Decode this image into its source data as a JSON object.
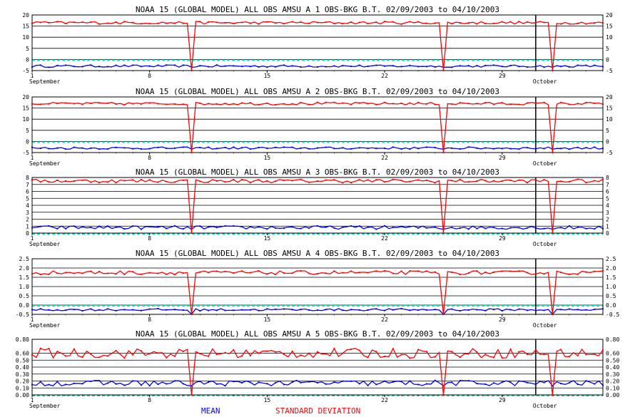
{
  "legend": {
    "mean": "MEAN",
    "std": "STANDARD DEVIATION"
  },
  "colors": {
    "mean": "#0000ff",
    "std": "#ff0000",
    "zero": "#00e5c8",
    "grid": "#000000"
  },
  "chart_data": [
    {
      "type": "line",
      "title": "NOAA 15 (GLOBAL MODEL) ALL OBS AMSU A  1   OBS-BKG B.T.  02/09/2003 to 04/10/2003",
      "ylim": [
        -5,
        20
      ],
      "yticks": [
        "20",
        "15",
        "10",
        "5",
        "0",
        "-5"
      ],
      "ytick_values": [
        20,
        15,
        10,
        5,
        0,
        -5
      ],
      "xticks": [
        "1",
        "8",
        "15",
        "22",
        "29"
      ],
      "xtick_values": [
        1,
        8,
        15,
        22,
        29
      ],
      "months": [
        "September",
        "October"
      ],
      "month_values": [
        1,
        31
      ],
      "grid": true,
      "legend_position": "bottom-center",
      "series": [
        {
          "name": "MEAN",
          "base": -3.0,
          "noise": 0.5,
          "dip": 0.0
        },
        {
          "name": "STANDARD DEVIATION",
          "base": 16.5,
          "noise": 0.6,
          "dip": 0.0
        }
      ],
      "dips": [
        10.5,
        25.5,
        32.0
      ]
    },
    {
      "type": "line",
      "title": "NOAA 15 (GLOBAL MODEL) ALL OBS AMSU A  2   OBS-BKG B.T.  02/09/2003 to 04/10/2003",
      "ylim": [
        -5,
        20
      ],
      "yticks": [
        "20",
        "15",
        "10",
        "5",
        "0",
        "-5"
      ],
      "ytick_values": [
        20,
        15,
        10,
        5,
        0,
        -5
      ],
      "xticks": [
        "1",
        "8",
        "15",
        "22",
        "29"
      ],
      "xtick_values": [
        1,
        8,
        15,
        22,
        29
      ],
      "months": [
        "September",
        "October"
      ],
      "month_values": [
        1,
        31
      ],
      "grid": true,
      "series": [
        {
          "name": "MEAN",
          "base": -3.0,
          "noise": 0.5,
          "dip": 0.0
        },
        {
          "name": "STANDARD DEVIATION",
          "base": 17.0,
          "noise": 0.6,
          "dip": 0.0
        }
      ],
      "dips": [
        10.5,
        25.5,
        32.0
      ]
    },
    {
      "type": "line",
      "title": "NOAA 15 (GLOBAL MODEL) ALL OBS AMSU A  3   OBS-BKG B.T.  02/09/2003 to 04/10/2003",
      "ylim": [
        0,
        8
      ],
      "yticks": [
        "8",
        "7",
        "6",
        "5",
        "4",
        "3",
        "2",
        "1",
        "0"
      ],
      "ytick_values": [
        8,
        7,
        6,
        5,
        4,
        3,
        2,
        1,
        0
      ],
      "xticks": [
        "1",
        "8",
        "15",
        "22",
        "29"
      ],
      "xtick_values": [
        1,
        8,
        15,
        22,
        29
      ],
      "months": [
        "September",
        "October"
      ],
      "month_values": [
        1,
        31
      ],
      "grid": true,
      "series": [
        {
          "name": "MEAN",
          "base": 0.8,
          "noise": 0.25,
          "dip": 0.0
        },
        {
          "name": "STANDARD DEVIATION",
          "base": 7.5,
          "noise": 0.25,
          "dip": 0.0
        }
      ],
      "dips": [
        10.5,
        25.5,
        32.0
      ]
    },
    {
      "type": "line",
      "title": "NOAA 15 (GLOBAL MODEL) ALL OBS AMSU A  4   OBS-BKG B.T.  02/09/2003 to 04/10/2003",
      "ylim": [
        -0.5,
        2.5
      ],
      "yticks": [
        "2.5",
        "2.0",
        "1.5",
        "1.0",
        "0.5",
        "0.0",
        "-0.5"
      ],
      "ytick_values": [
        2.5,
        2.0,
        1.5,
        1.0,
        0.5,
        0.0,
        -0.5
      ],
      "xticks": [
        "1",
        "8",
        "15",
        "22",
        "29"
      ],
      "xtick_values": [
        1,
        8,
        15,
        22,
        29
      ],
      "months": [
        "September",
        "October"
      ],
      "month_values": [
        1,
        31
      ],
      "grid": true,
      "series": [
        {
          "name": "MEAN",
          "base": -0.25,
          "noise": 0.06,
          "dip": -0.2
        },
        {
          "name": "STANDARD DEVIATION",
          "base": 1.75,
          "noise": 0.1,
          "dip": 0.3
        }
      ],
      "dips": [
        10.5,
        25.5,
        32.0
      ]
    },
    {
      "type": "line",
      "title": "NOAA 15 (GLOBAL MODEL) ALL OBS AMSU A  5   OBS-BKG B.T.  02/09/2003 to 04/10/2003",
      "ylim": [
        0,
        0.8
      ],
      "yticks": [
        "0.80",
        "0.60",
        "0.50",
        "0.40",
        "0.30",
        "0.20",
        "0.10",
        "0.00"
      ],
      "ytick_values": [
        0.8,
        0.6,
        0.5,
        0.4,
        0.3,
        0.2,
        0.1,
        0.0
      ],
      "xticks": [
        "1",
        "8",
        "15",
        "22",
        "29"
      ],
      "xtick_values": [
        1,
        8,
        15,
        22,
        29
      ],
      "months": [
        "September",
        "October"
      ],
      "month_values": [
        1,
        31
      ],
      "grid": true,
      "series": [
        {
          "name": "MEAN",
          "base": 0.17,
          "noise": 0.04,
          "dip": 0.0
        },
        {
          "name": "STANDARD DEVIATION",
          "base": 0.6,
          "noise": 0.07,
          "dip": 0.0
        }
      ],
      "dips": [
        10.5,
        25.5,
        32.0
      ]
    }
  ]
}
